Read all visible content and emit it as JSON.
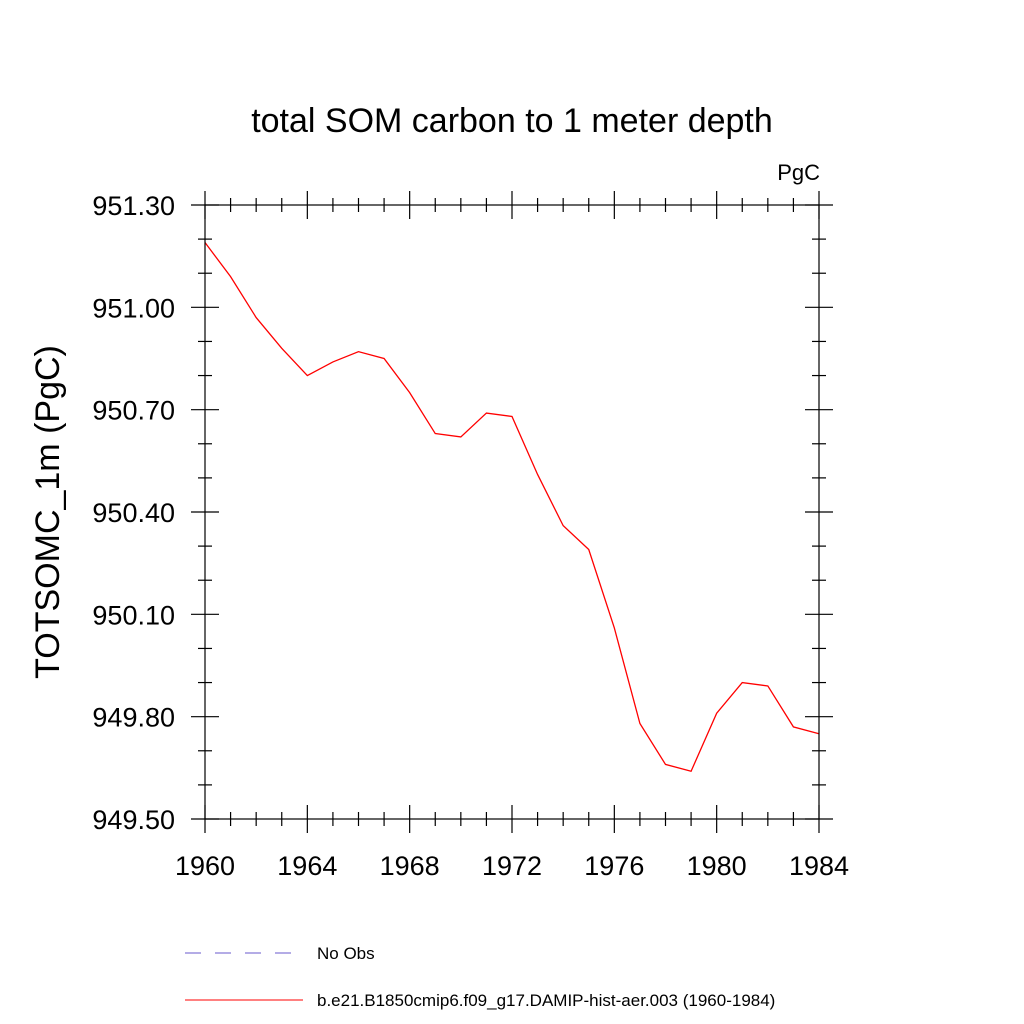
{
  "chart_data": {
    "type": "line",
    "title": "total SOM carbon to 1 meter depth",
    "units_label": "PgC",
    "xlabel": "",
    "ylabel": "TOTSOMC_1m  (PgC)",
    "xlim": [
      1960,
      1984
    ],
    "ylim": [
      949.5,
      951.3
    ],
    "x_ticks": [
      1960,
      1964,
      1968,
      1972,
      1976,
      1980,
      1984
    ],
    "x_tick_labels": [
      "1960",
      "1964",
      "1968",
      "1972",
      "1976",
      "1980",
      "1984"
    ],
    "y_ticks": [
      949.5,
      949.8,
      950.1,
      950.4,
      950.7,
      951.0,
      951.3
    ],
    "y_tick_labels": [
      "949.50",
      "949.80",
      "950.10",
      "950.40",
      "950.70",
      "951.00",
      "951.30"
    ],
    "x_minor_step": 1,
    "y_minor_step": 0.1,
    "grid": false,
    "legend_position": "bottom",
    "series": [
      {
        "name": "No Obs",
        "color": "#6a5acd",
        "dash": "dashed",
        "x": [],
        "values": []
      },
      {
        "name": "b.e21.B1850cmip6.f09_g17.DAMIP-hist-aer.003 (1960-1984)",
        "color": "#ff0000",
        "dash": "solid",
        "x": [
          1960,
          1961,
          1962,
          1963,
          1964,
          1965,
          1966,
          1967,
          1968,
          1969,
          1970,
          1971,
          1972,
          1973,
          1974,
          1975,
          1976,
          1977,
          1978,
          1979,
          1980,
          1981,
          1982,
          1983,
          1984
        ],
        "values": [
          951.19,
          951.09,
          950.97,
          950.88,
          950.8,
          950.84,
          950.87,
          950.85,
          950.75,
          950.63,
          950.62,
          950.69,
          950.68,
          950.51,
          950.36,
          950.29,
          950.06,
          949.78,
          949.66,
          949.64,
          949.81,
          949.9,
          949.89,
          949.77,
          949.75
        ]
      }
    ]
  }
}
